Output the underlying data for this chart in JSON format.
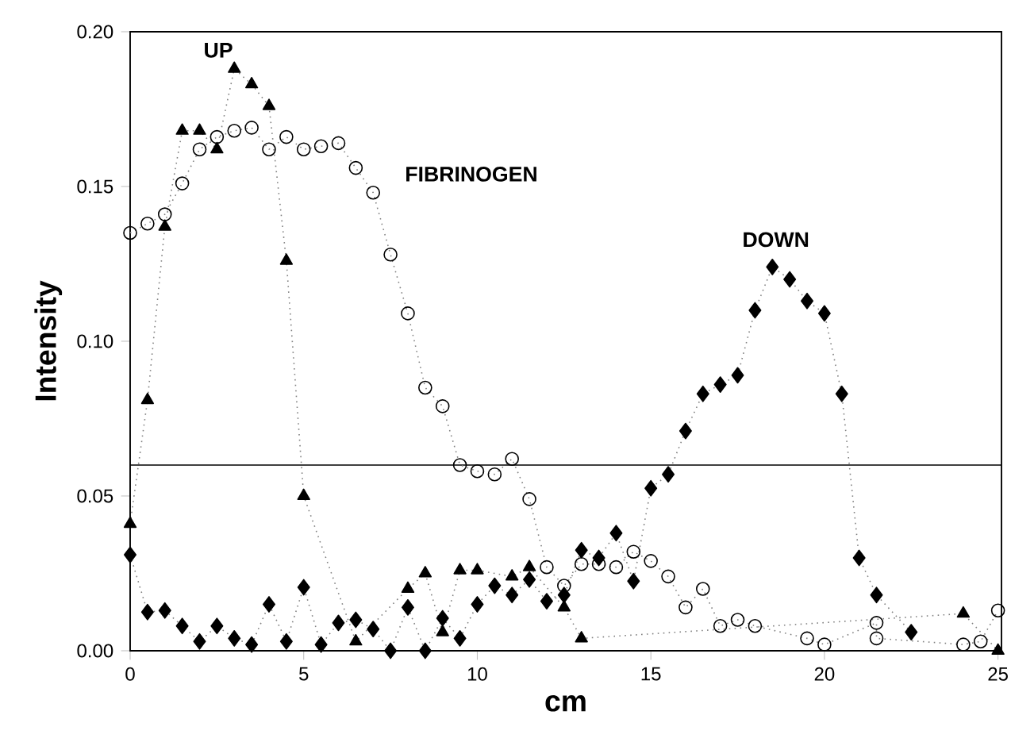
{
  "chart_data": {
    "type": "line",
    "xlabel": "cm",
    "ylabel": "Intensity",
    "xlim": [
      0,
      25.1
    ],
    "ylim": [
      0,
      0.2
    ],
    "xticks": [
      0,
      5,
      10,
      15,
      20,
      25
    ],
    "yticks": [
      {
        "value": 0,
        "label": "0.00"
      },
      {
        "value": 0.05,
        "label": "0.05"
      },
      {
        "value": 0.1,
        "label": "0.10"
      },
      {
        "value": 0.15,
        "label": "0.15"
      },
      {
        "value": 0.2,
        "label": "0.20"
      }
    ],
    "line_style": "dotted",
    "ref_lines": [
      {
        "axis": "y",
        "value": 0.06,
        "color": "#000000"
      }
    ],
    "series": [
      {
        "name": "UP",
        "color": "#000000",
        "marker": "triangle",
        "x": [
          0,
          0.5,
          1,
          1.5,
          2,
          2.5,
          3,
          3.5,
          4,
          4.5,
          5,
          6.5,
          8,
          8.5,
          9,
          9.5,
          10,
          11,
          11.5,
          12.5,
          13,
          24,
          25
        ],
        "values": [
          0.041,
          0.081,
          0.137,
          0.168,
          0.168,
          0.162,
          0.188,
          0.183,
          0.176,
          0.126,
          0.05,
          0.003,
          0.02,
          0.025,
          0.006,
          0.026,
          0.026,
          0.024,
          0.027,
          0.014,
          0.004,
          0.012,
          0
        ]
      },
      {
        "name": "FIBRINOGEN",
        "color": "#000000",
        "marker": "circle",
        "x": [
          0,
          0.5,
          1,
          1.5,
          2,
          2.5,
          3,
          3.5,
          4,
          4.5,
          5,
          5.5,
          6,
          6.5,
          7,
          7.5,
          8,
          8.5,
          9,
          9.5,
          10,
          10.5,
          11,
          11.5,
          12,
          12.5,
          13,
          13.5,
          14,
          14.5,
          15,
          15.5,
          16,
          16.5,
          17,
          17.5,
          18,
          19.5,
          20,
          21.5,
          21.5,
          24,
          24.5,
          25
        ],
        "values": [
          0.135,
          0.138,
          0.141,
          0.151,
          0.162,
          0.166,
          0.168,
          0.169,
          0.162,
          0.166,
          0.162,
          0.163,
          0.164,
          0.156,
          0.148,
          0.128,
          0.109,
          0.085,
          0.079,
          0.06,
          0.058,
          0.057,
          0.062,
          0.049,
          0.027,
          0.021,
          0.028,
          0.028,
          0.027,
          0.032,
          0.029,
          0.024,
          0.014,
          0.02,
          0.008,
          0.01,
          0.008,
          0.004,
          0.002,
          0.009,
          0.004,
          0.002,
          0.003,
          0.013
        ]
      },
      {
        "name": "DOWN",
        "color": "#000000",
        "marker": "diamond",
        "x": [
          0,
          0.5,
          1,
          1.5,
          2,
          2.5,
          3,
          3.5,
          4,
          4.5,
          5,
          5.5,
          6,
          6.5,
          7,
          7.5,
          8,
          8.5,
          9,
          9.5,
          10,
          10.5,
          11,
          11.5,
          12,
          12.5,
          13,
          13.5,
          14,
          14.5,
          15,
          15.5,
          16,
          16.5,
          17,
          17.5,
          18,
          18.5,
          19,
          19.5,
          20,
          20.5,
          21,
          21.5,
          22.5
        ],
        "values": [
          0.031,
          0.0125,
          0.013,
          0.008,
          0.003,
          0.008,
          0.004,
          0.002,
          0.015,
          0.003,
          0.0205,
          0.002,
          0.009,
          0.01,
          0.007,
          0,
          0.014,
          0,
          0.0105,
          0.004,
          0.015,
          0.021,
          0.018,
          0.023,
          0.016,
          0.018,
          0.0325,
          0.03,
          0.038,
          0.0225,
          0.0525,
          0.057,
          0.071,
          0.083,
          0.086,
          0.089,
          0.11,
          0.124,
          0.12,
          0.113,
          0.109,
          0.083,
          0.03,
          0.018,
          0.006
        ]
      }
    ]
  }
}
